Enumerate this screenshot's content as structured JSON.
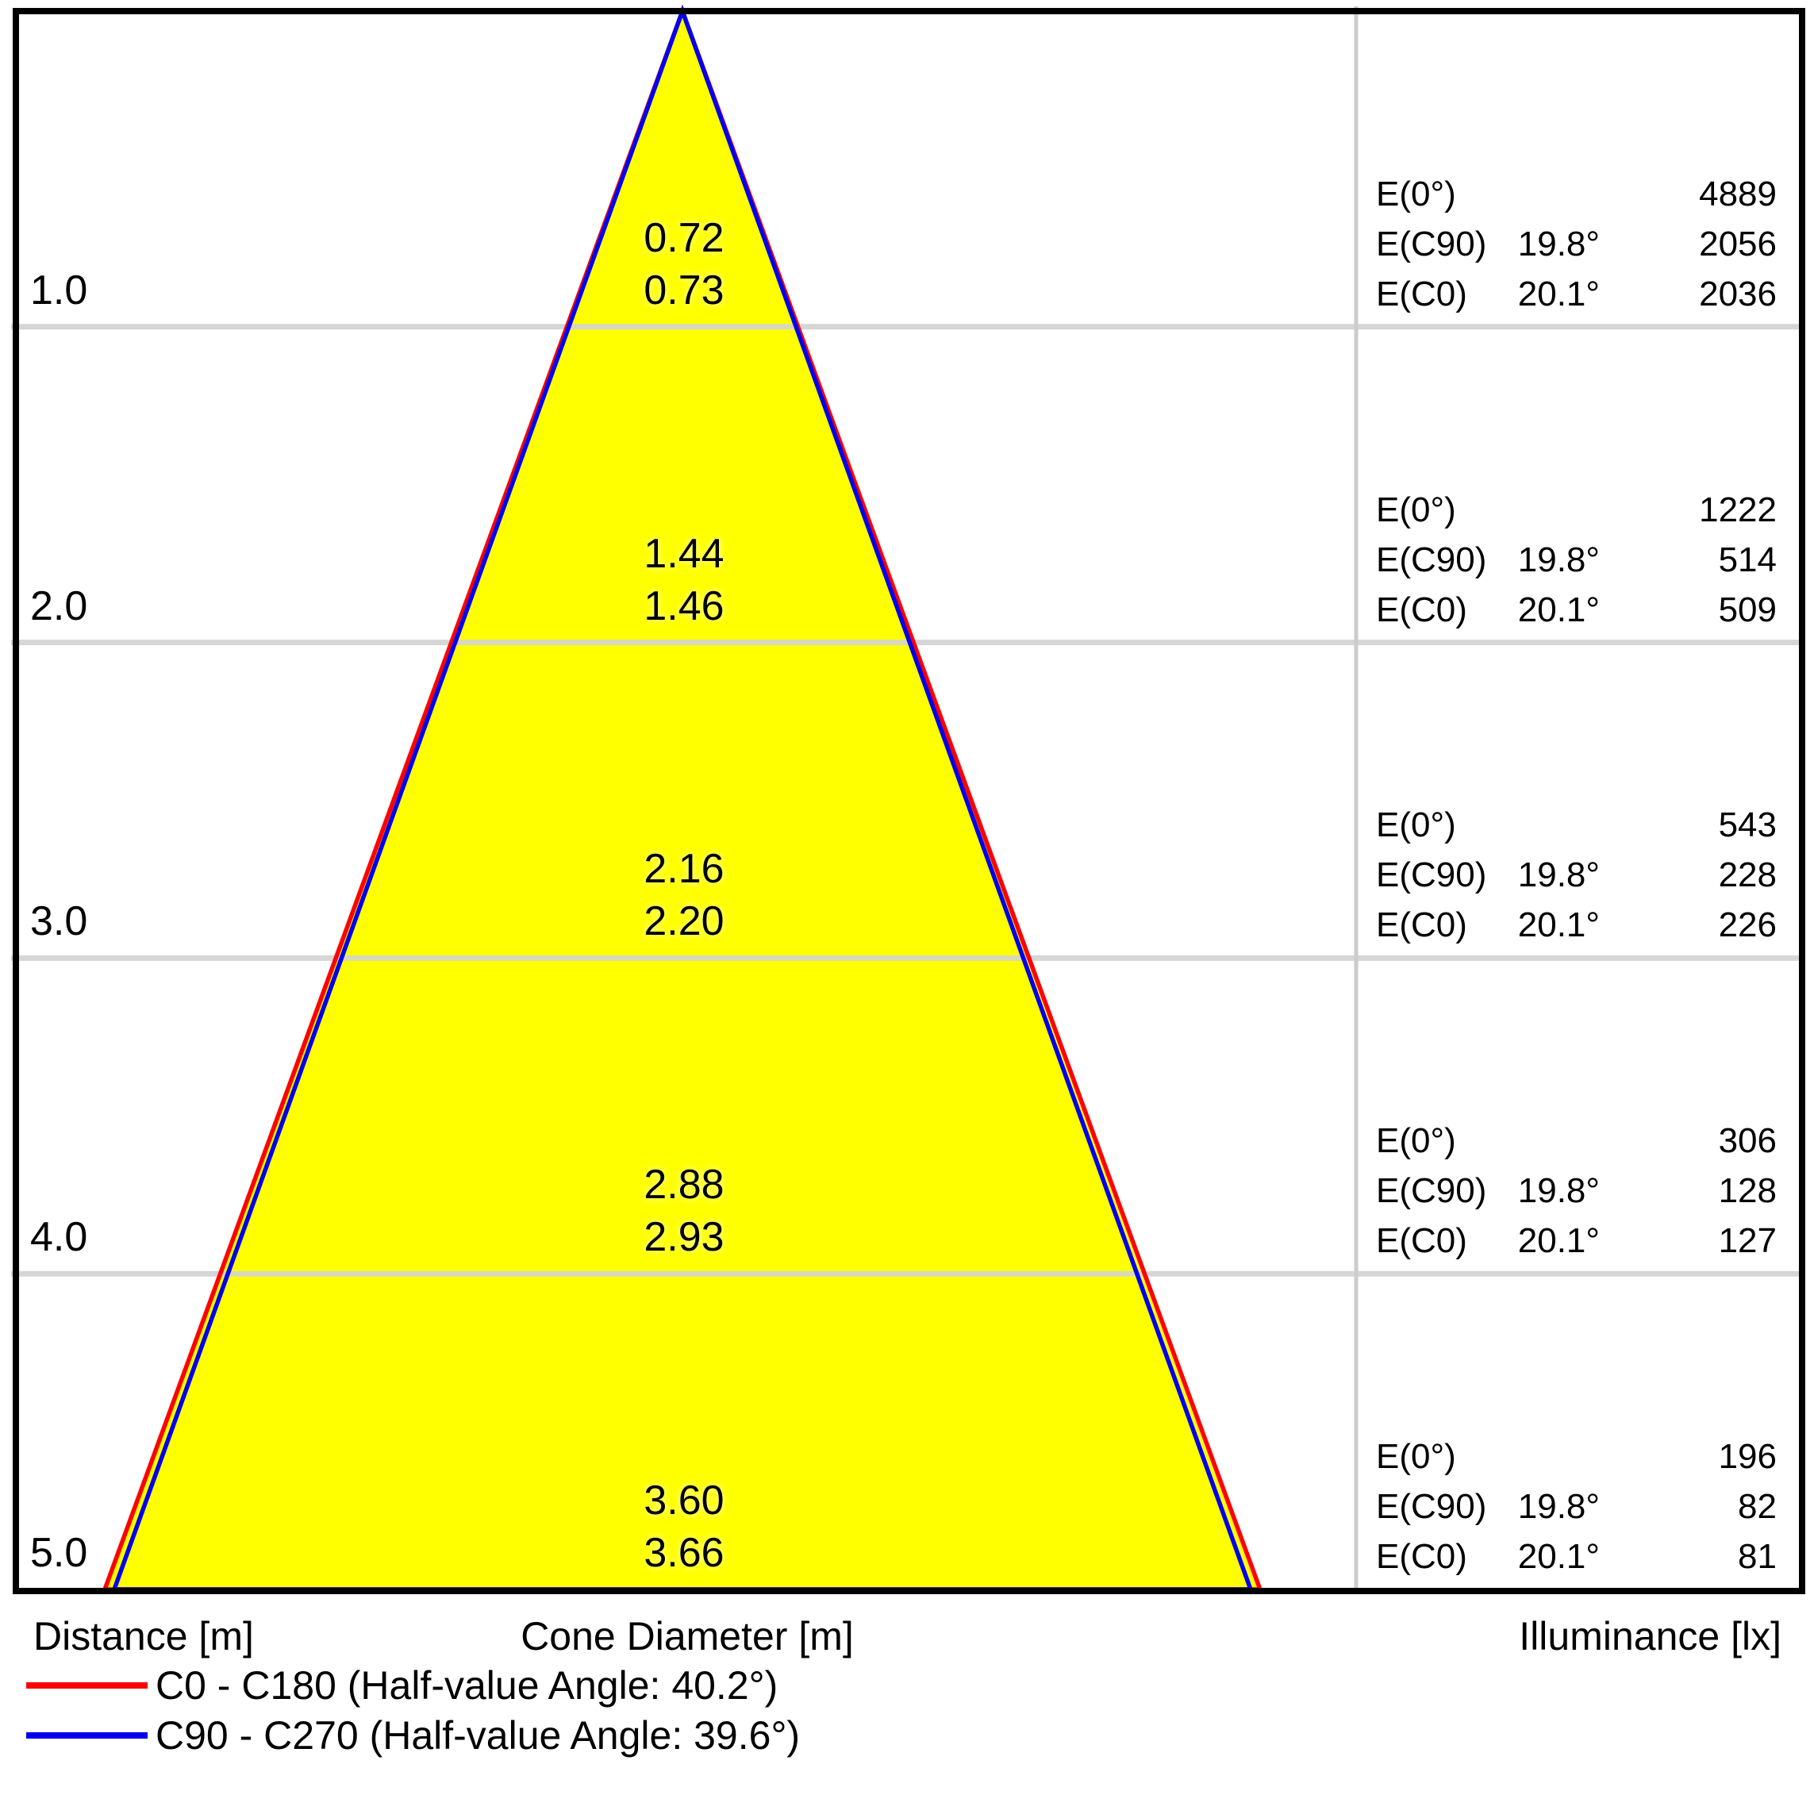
{
  "chart_data": {
    "type": "cone-diagram",
    "description": "Light cone diagram: beam diameter and illuminance vs distance below luminaire",
    "xlabel_left": "Distance [m]",
    "xlabel_center": "Cone Diameter [m]",
    "xlabel_right": "Illuminance [lx]",
    "distance_range_m": [
      0,
      5
    ],
    "grid": "on",
    "legend_position": "bottom-left",
    "legend": [
      {
        "label": "C0 - C180 (Half-value Angle: 40.2°)",
        "color": "#fe0000"
      },
      {
        "label": "C90 - C270 (Half-value Angle: 39.6°)",
        "color": "#0000ee"
      }
    ],
    "half_value_angle_c0_c180_deg": 40.2,
    "half_value_angle_c90_c270_deg": 39.6,
    "rows": [
      {
        "distance": "1.0",
        "cone_diameter_c90": "0.72",
        "cone_diameter_c0": "0.73",
        "lines": [
          {
            "label": "E(0°)",
            "angle": "",
            "value": "4889"
          },
          {
            "label": "E(C90)",
            "angle": "19.8°",
            "value": "2056"
          },
          {
            "label": "E(C0)",
            "angle": "20.1°",
            "value": "2036"
          }
        ]
      },
      {
        "distance": "2.0",
        "cone_diameter_c90": "1.44",
        "cone_diameter_c0": "1.46",
        "lines": [
          {
            "label": "E(0°)",
            "angle": "",
            "value": "1222"
          },
          {
            "label": "E(C90)",
            "angle": "19.8°",
            "value": "514"
          },
          {
            "label": "E(C0)",
            "angle": "20.1°",
            "value": "509"
          }
        ]
      },
      {
        "distance": "3.0",
        "cone_diameter_c90": "2.16",
        "cone_diameter_c0": "2.20",
        "lines": [
          {
            "label": "E(0°)",
            "angle": "",
            "value": "543"
          },
          {
            "label": "E(C90)",
            "angle": "19.8°",
            "value": "228"
          },
          {
            "label": "E(C0)",
            "angle": "20.1°",
            "value": "226"
          }
        ]
      },
      {
        "distance": "4.0",
        "cone_diameter_c90": "2.88",
        "cone_diameter_c0": "2.93",
        "lines": [
          {
            "label": "E(0°)",
            "angle": "",
            "value": "306"
          },
          {
            "label": "E(C90)",
            "angle": "19.8°",
            "value": "128"
          },
          {
            "label": "E(C0)",
            "angle": "20.1°",
            "value": "127"
          }
        ]
      },
      {
        "distance": "5.0",
        "cone_diameter_c90": "3.60",
        "cone_diameter_c0": "3.66",
        "lines": [
          {
            "label": "E(0°)",
            "angle": "",
            "value": "196"
          },
          {
            "label": "E(C90)",
            "angle": "19.8°",
            "value": "82"
          },
          {
            "label": "E(C0)",
            "angle": "20.1°",
            "value": "81"
          }
        ]
      }
    ]
  },
  "colors": {
    "background": "#ffffff",
    "cone_fill": "#ffff00",
    "c0_line": "#fe0000",
    "c90_line": "#0000ee",
    "grid_line": "#d6d6d6",
    "grid_line_on_cone": "#d8d8bc",
    "divider": "#cccccc",
    "border": "#000000"
  }
}
